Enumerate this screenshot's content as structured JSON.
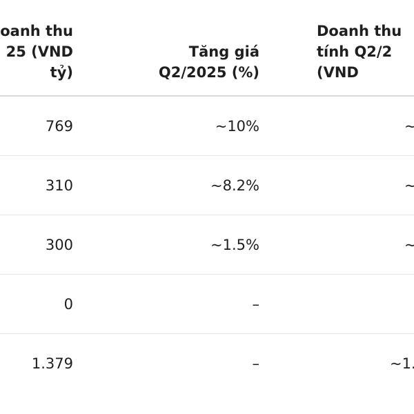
{
  "table": {
    "headers": [
      [
        "oanh thu",
        "25 (VND",
        "tỷ)"
      ],
      [
        "Tăng giá",
        "Q2/2025 (%)"
      ],
      [
        "Doanh thu",
        "tính Q2/2",
        "(VND"
      ]
    ],
    "rows": [
      [
        "769",
        "~10%",
        "~"
      ],
      [
        "310",
        "~8.2%",
        "~"
      ],
      [
        "300",
        "~1.5%",
        "~"
      ],
      [
        "0",
        "–",
        ""
      ],
      [
        "1.379",
        "–",
        "~1."
      ]
    ]
  }
}
